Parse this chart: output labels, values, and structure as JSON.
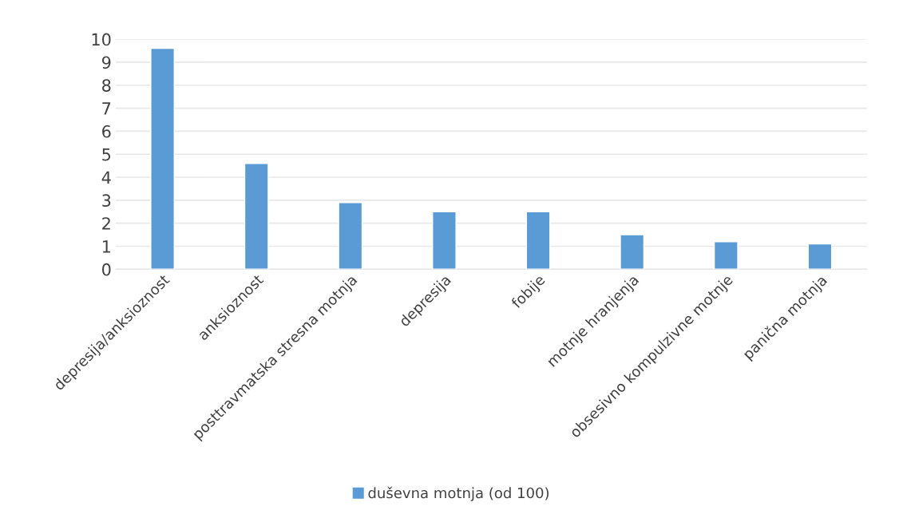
{
  "chart_data": {
    "type": "bar",
    "categories": [
      "depresija/anksioznost",
      "anksioznost",
      "posttravmatska stresna motnja",
      "depresija",
      "fobije",
      "motnje hranjenja",
      "obsesivno kompulzivne motnje",
      "panična motnja"
    ],
    "series": [
      {
        "name": "duševna motnja (od 100)",
        "color": "#5b9bd5",
        "values": [
          9.6,
          4.6,
          2.9,
          2.5,
          2.5,
          1.5,
          1.2,
          1.1
        ]
      }
    ],
    "ylim": [
      0,
      10
    ],
    "yticks": [
      0,
      1,
      2,
      3,
      4,
      5,
      6,
      7,
      8,
      9,
      10
    ],
    "grid": "y",
    "legend": "bottom"
  }
}
